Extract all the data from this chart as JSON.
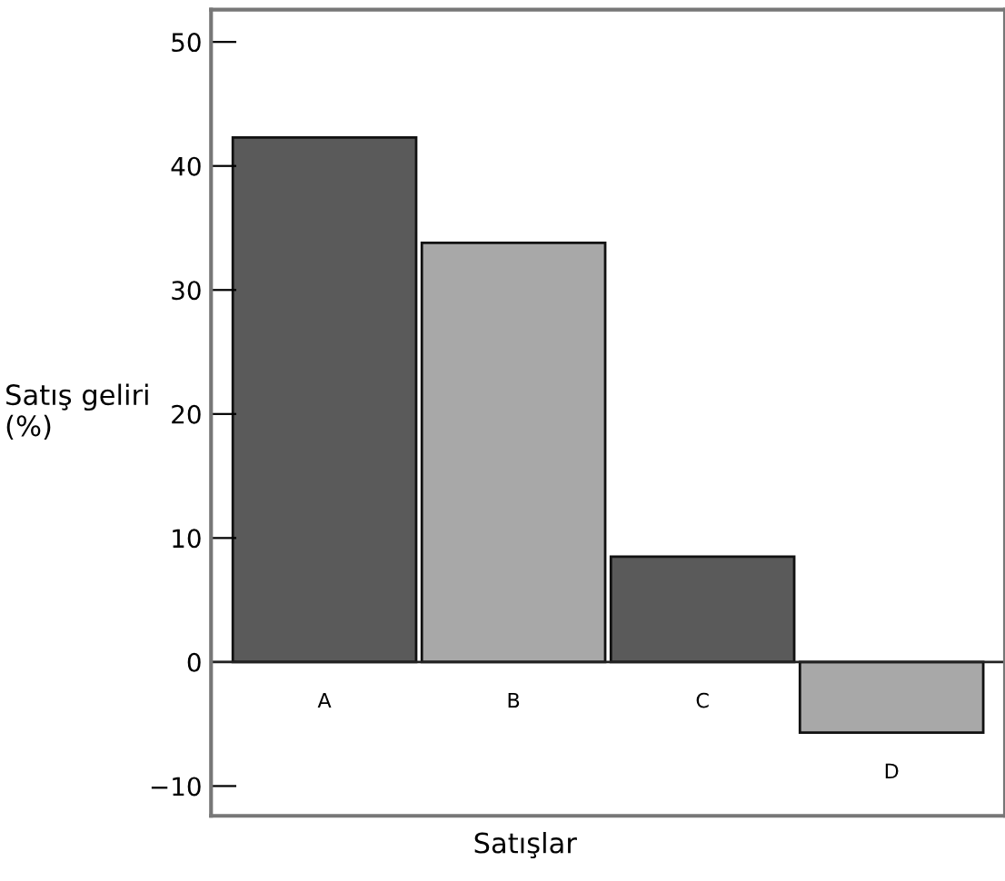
{
  "chart_data": {
    "type": "bar",
    "xlabel": "Satışlar",
    "ylabel": "Satış geliri\n(%)",
    "categories": [
      "A",
      "B",
      "C",
      "D"
    ],
    "values": [
      42.3,
      33.8,
      8.5,
      -5.7
    ],
    "colors": [
      "#5a5a5a",
      "#a8a8a8",
      "#5a5a5a",
      "#a8a8a8"
    ],
    "ylim": [
      -12.4,
      52.6
    ],
    "yticks": [
      {
        "value": -10,
        "label": "−10"
      },
      0,
      10,
      20,
      30,
      40,
      50
    ],
    "grid": false,
    "legend": false
  }
}
